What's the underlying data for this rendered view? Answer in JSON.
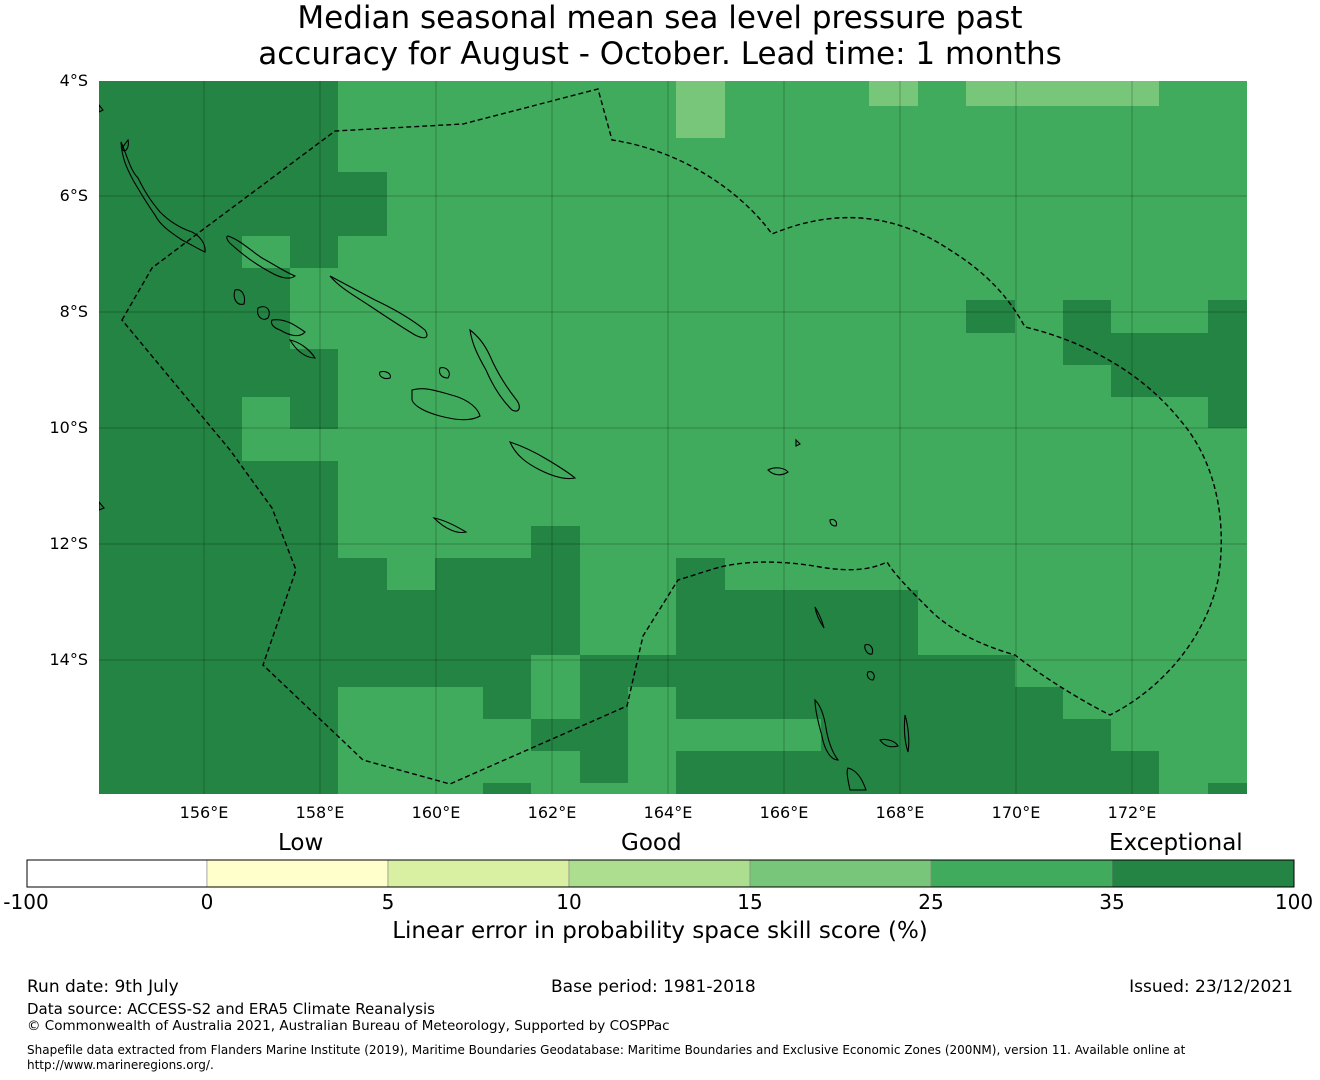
{
  "title": {
    "line1": "Median seasonal mean sea level pressure past",
    "line2": "accuracy for August - October. Lead time: 1 months"
  },
  "map": {
    "lat_labels": [
      "4°S",
      "6°S",
      "8°S",
      "10°S",
      "12°S",
      "14°S"
    ],
    "lon_labels": [
      "156°E",
      "158°E",
      "160°E",
      "162°E",
      "164°E",
      "166°E",
      "168°E",
      "170°E",
      "172°E"
    ],
    "colors": {
      "exceptional_dark": "#238443",
      "good_high": "#41ab5d",
      "good_mid": "#78c679"
    }
  },
  "colorbar": {
    "categories": [
      "Low",
      "Good",
      "Exceptional"
    ],
    "ticks": [
      "-100",
      "0",
      "5",
      "10",
      "15",
      "25",
      "35",
      "100"
    ],
    "colors": [
      "#ffffff",
      "#ffffcc",
      "#d9f0a3",
      "#addd8e",
      "#78c679",
      "#41ab5d",
      "#238443"
    ],
    "title": "Linear error in probability space skill score (%)"
  },
  "footer": {
    "run_date": "Run date: 9th July",
    "base_period": "Base period: 1981-2018",
    "issued": "Issued: 23/12/2021",
    "data_source": "Data source: ACCESS-S2 and ERA5 Climate Reanalysis",
    "copyright": "© Commonwealth of Australia 2021, Australian Bureau of Meteorology, Supported by COSPPac",
    "shapefile_line1": "Shapefile data extracted from Flanders Marine Institute (2019), Maritime Boundaries Geodatabase: Maritime Boundaries and Exclusive Economic Zones (200NM), version 11. Available online at",
    "shapefile_line2": "http://www.marineregions.org/."
  }
}
